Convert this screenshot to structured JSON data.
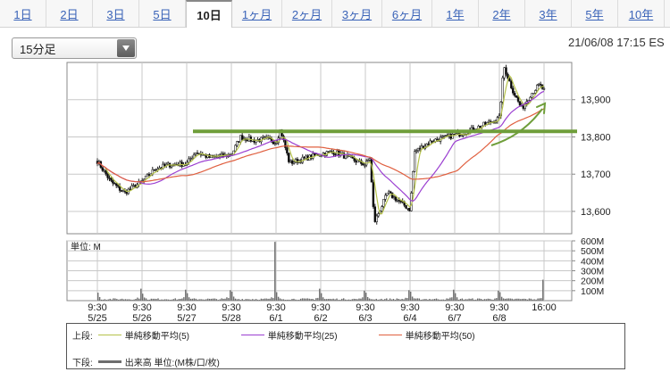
{
  "tabs": [
    {
      "label": "1日",
      "active": false
    },
    {
      "label": "2日",
      "active": false
    },
    {
      "label": "3日",
      "active": false
    },
    {
      "label": "5日",
      "active": false
    },
    {
      "label": "10日",
      "active": true
    },
    {
      "label": "1ヶ月",
      "active": false
    },
    {
      "label": "2ヶ月",
      "active": false
    },
    {
      "label": "3ヶ月",
      "active": false
    },
    {
      "label": "6ヶ月",
      "active": false
    },
    {
      "label": "1年",
      "active": false
    },
    {
      "label": "2年",
      "active": false
    },
    {
      "label": "3年",
      "active": false
    },
    {
      "label": "5年",
      "active": false
    },
    {
      "label": "10年",
      "active": false
    }
  ],
  "interval_select": {
    "value": "15分足"
  },
  "timestamp": "21/06/08 17:15 ES",
  "legend": {
    "upper_prefix": "上段:",
    "lower_prefix": "下段:",
    "ma5_label": "単純移動平均(5)",
    "ma25_label": "単純移動平均(25)",
    "ma50_label": "単純移動平均(50)",
    "volume_label": "出来高 単位:(M株/口/枚)"
  },
  "colors": {
    "candle_up": "#ffffff",
    "candle_down": "#000000",
    "ma5": "#b5c24a",
    "ma25": "#9b3fd1",
    "ma50": "#e06040",
    "annotation": "#6f9e3a",
    "volume": "#6d6d6d",
    "grid": "#c8c8c8"
  },
  "chart_data": {
    "type": "candlestick",
    "price_ylim": [
      13540,
      14000
    ],
    "price_yticks": [
      13600,
      13700,
      13800,
      13900
    ],
    "price_ytick_labels": [
      "13,600",
      "13,700",
      "13,800",
      "13,900"
    ],
    "volume_ylim": [
      0,
      600
    ],
    "volume_yticks": [
      100,
      200,
      300,
      400,
      500,
      600
    ],
    "volume_ytick_labels": [
      "100M",
      "200M",
      "300M",
      "400M",
      "500M",
      "600M"
    ],
    "volume_unit_label": "単位: M",
    "x_time_labels": [
      "9:30",
      "9:30",
      "9:30",
      "9:30",
      "9:30",
      "9:30",
      "9:30",
      "9:30",
      "9:30",
      "9:30",
      "16:00"
    ],
    "x_date_labels": [
      "5/25",
      "5/26",
      "5/27",
      "5/28",
      "6/1",
      "6/2",
      "6/3",
      "6/4",
      "6/7",
      "6/8",
      ""
    ],
    "days": [
      "5/25",
      "5/26",
      "5/27",
      "5/28",
      "6/1",
      "6/2",
      "6/3",
      "6/4",
      "6/7",
      "6/8"
    ],
    "close_path": [
      [
        0,
        13735
      ],
      [
        0.3,
        13680
      ],
      [
        0.6,
        13650
      ],
      [
        1.0,
        13680
      ],
      [
        1.3,
        13715
      ],
      [
        1.6,
        13725
      ],
      [
        2.0,
        13728
      ],
      [
        2.2,
        13760
      ],
      [
        2.5,
        13745
      ],
      [
        3.0,
        13752
      ],
      [
        3.2,
        13800
      ],
      [
        3.5,
        13790
      ],
      [
        3.8,
        13795
      ],
      [
        4.0,
        13785
      ],
      [
        4.1,
        13820
      ],
      [
        4.3,
        13730
      ],
      [
        4.6,
        13740
      ],
      [
        5.0,
        13755
      ],
      [
        5.3,
        13760
      ],
      [
        5.6,
        13745
      ],
      [
        6.0,
        13725
      ],
      [
        6.1,
        13745
      ],
      [
        6.2,
        13570
      ],
      [
        6.5,
        13650
      ],
      [
        7.0,
        13605
      ],
      [
        7.1,
        13760
      ],
      [
        7.5,
        13790
      ],
      [
        8.0,
        13805
      ],
      [
        8.3,
        13815
      ],
      [
        8.6,
        13830
      ],
      [
        9.0,
        13850
      ],
      [
        9.1,
        13990
      ],
      [
        9.3,
        13925
      ],
      [
        9.5,
        13875
      ],
      [
        9.7,
        13915
      ],
      [
        9.9,
        13940
      ],
      [
        10.0,
        13925
      ]
    ],
    "volume_per_day": [
      {
        "open": 80,
        "close": 120
      },
      {
        "open": 70,
        "close": 110
      },
      {
        "open": 75,
        "close": 105
      },
      {
        "open": 90,
        "close": 590
      },
      {
        "open": 85,
        "close": 120
      },
      {
        "open": 75,
        "close": 100
      },
      {
        "open": 80,
        "close": 105
      },
      {
        "open": 90,
        "close": 110
      },
      {
        "open": 75,
        "close": 100
      },
      {
        "open": 85,
        "close": 210
      }
    ],
    "series": [
      {
        "name": "単純移動平均(5)",
        "window": 5
      },
      {
        "name": "単純移動平均(25)",
        "window": 25
      },
      {
        "name": "単純移動平均(50)",
        "window": 50
      }
    ],
    "annotation_level": 13815
  }
}
